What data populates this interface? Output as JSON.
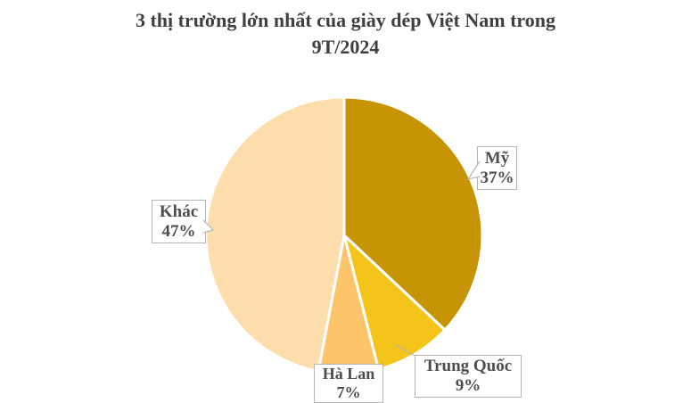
{
  "title": {
    "text": "3 thị trường lớn nhất của giày dép Việt Nam trong 9T/2024",
    "lines": [
      "3 thị trường lớn nhất của giày dép Việt Nam trong",
      "9T/2024"
    ]
  },
  "chart_data": {
    "type": "pie",
    "title": "3 thị trường lớn nhất của giày dép Việt Nam trong 9T/2024",
    "unit": "%",
    "start_angle_deg": 0,
    "direction": "clockwise",
    "legend_position": "none",
    "label_style": "callout-boxes",
    "slices": [
      {
        "id": "my",
        "label": "Mỹ",
        "value": 37,
        "display": "37%",
        "color": "#c79405"
      },
      {
        "id": "trung-quoc",
        "label": "Trung Quốc",
        "value": 9,
        "display": "9%",
        "color": "#f5c41a"
      },
      {
        "id": "ha-lan",
        "label": "Hà Lan",
        "value": 7,
        "display": "7%",
        "color": "#fcc56a"
      },
      {
        "id": "khac",
        "label": "Khác",
        "value": 47,
        "display": "47%",
        "color": "#feddad"
      }
    ]
  },
  "colors": {
    "background": "#ffffff",
    "title_text": "#3f3f3f",
    "label_text": "#4d4d4d",
    "label_box_border": "#b5b5b5",
    "slice_separator": "#ffffff"
  }
}
